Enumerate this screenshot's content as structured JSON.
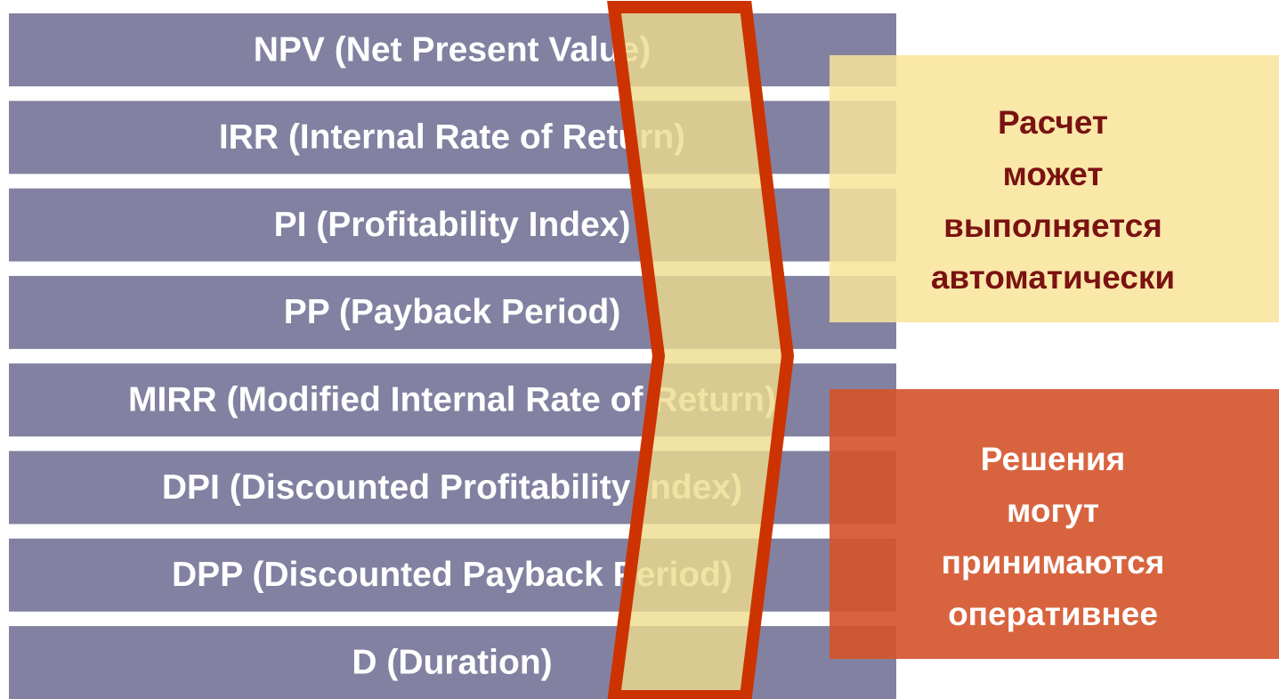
{
  "items": [
    "NPV (Net Present Value)",
    "IRR (Internal Rate of Return)",
    "PI (Profitability Index)",
    "PP (Payback Period)",
    "MIRR (Modified Internal Rate of Return)",
    "DPI (Discounted Profitability Index)",
    "DPP (Discounted Payback Period)",
    "D (Duration)"
  ],
  "boxes": [
    {
      "lines": [
        "Расчет",
        "может",
        "выполняется",
        "автоматически"
      ]
    },
    {
      "lines": [
        "Решения",
        "могут",
        "принимаются",
        "оперативнее"
      ]
    }
  ]
}
